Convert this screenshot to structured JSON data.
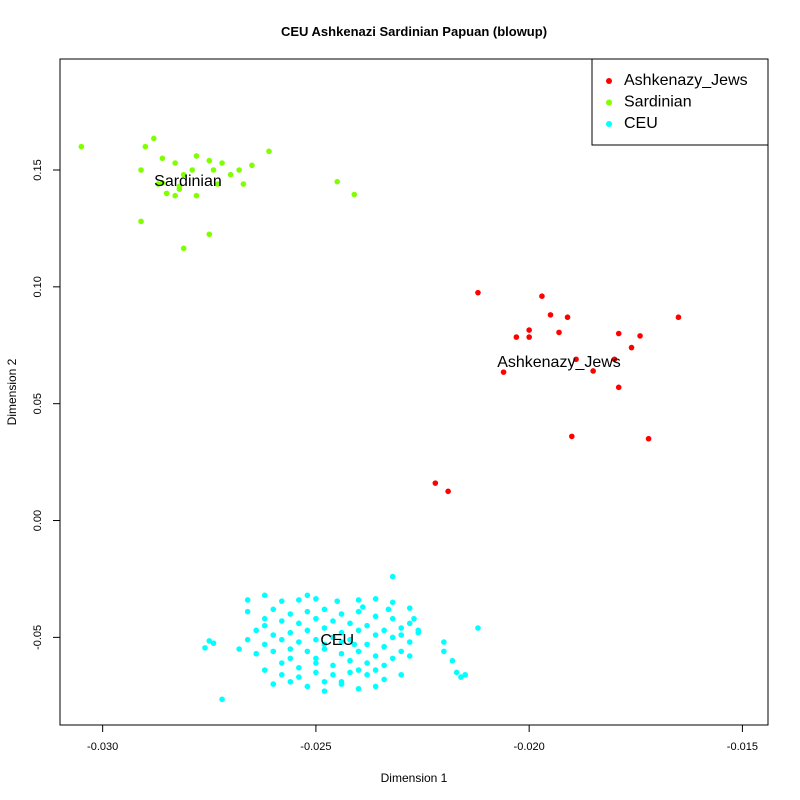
{
  "chart_data": {
    "type": "scatter",
    "title": "CEU Ashkenazi Sardinian Papuan (blowup)",
    "xlabel": "Dimension 1",
    "ylabel": "Dimension 2",
    "xlim": [
      -0.031,
      -0.0144
    ],
    "ylim": [
      -0.0875,
      0.1975
    ],
    "x_ticks": [
      {
        "value": -0.03,
        "label": "-0.030"
      },
      {
        "value": -0.025,
        "label": "-0.025"
      },
      {
        "value": -0.02,
        "label": "-0.020"
      },
      {
        "value": -0.015,
        "label": "-0.015"
      }
    ],
    "y_ticks": [
      {
        "value": -0.05,
        "label": "-0.05"
      },
      {
        "value": 0.0,
        "label": "0.00"
      },
      {
        "value": 0.05,
        "label": "0.05"
      },
      {
        "value": 0.1,
        "label": "0.10"
      },
      {
        "value": 0.15,
        "label": "0.15"
      }
    ],
    "grid": false,
    "legend_position": "top-right",
    "legend": [
      "Ashkenazy_Jews",
      "Sardinian",
      "CEU"
    ],
    "series": [
      {
        "name": "Ashkenazy_Jews",
        "color": "#ff0000",
        "label": "Ashkenazy_Jews",
        "label_pos": [
          -0.0193,
          0.0675
        ],
        "points": [
          [
            -0.0212,
            0.0975
          ],
          [
            -0.0197,
            0.096
          ],
          [
            -0.0195,
            0.088
          ],
          [
            -0.0191,
            0.087
          ],
          [
            -0.0165,
            0.087
          ],
          [
            -0.02,
            0.0815
          ],
          [
            -0.0193,
            0.0805
          ],
          [
            -0.0179,
            0.08
          ],
          [
            -0.0174,
            0.079
          ],
          [
            -0.0203,
            0.0785
          ],
          [
            -0.02,
            0.0785
          ],
          [
            -0.0176,
            0.074
          ],
          [
            -0.0189,
            0.069
          ],
          [
            -0.018,
            0.069
          ],
          [
            -0.0206,
            0.0635
          ],
          [
            -0.0185,
            0.064
          ],
          [
            -0.0179,
            0.057
          ],
          [
            -0.019,
            0.036
          ],
          [
            -0.0172,
            0.035
          ],
          [
            -0.0222,
            0.016
          ],
          [
            -0.0219,
            0.0125
          ]
        ]
      },
      {
        "name": "Sardinian",
        "color": "#80ff00",
        "label": "Sardinian",
        "label_pos": [
          -0.028,
          0.145
        ],
        "points": [
          [
            -0.0305,
            0.16
          ],
          [
            -0.0291,
            0.15
          ],
          [
            -0.029,
            0.16
          ],
          [
            -0.0288,
            0.1635
          ],
          [
            -0.0287,
            0.144
          ],
          [
            -0.0286,
            0.155
          ],
          [
            -0.0285,
            0.14
          ],
          [
            -0.0283,
            0.139
          ],
          [
            -0.0283,
            0.153
          ],
          [
            -0.0282,
            0.143
          ],
          [
            -0.0281,
            0.148
          ],
          [
            -0.0279,
            0.15
          ],
          [
            -0.0278,
            0.156
          ],
          [
            -0.0278,
            0.139
          ],
          [
            -0.0275,
            0.154
          ],
          [
            -0.0274,
            0.15
          ],
          [
            -0.0273,
            0.144
          ],
          [
            -0.0272,
            0.153
          ],
          [
            -0.027,
            0.148
          ],
          [
            -0.0268,
            0.15
          ],
          [
            -0.0267,
            0.144
          ],
          [
            -0.0265,
            0.152
          ],
          [
            -0.0261,
            0.158
          ],
          [
            -0.0291,
            0.128
          ],
          [
            -0.0281,
            0.1165
          ],
          [
            -0.0275,
            0.1225
          ],
          [
            -0.0245,
            0.145
          ],
          [
            -0.0241,
            0.1395
          ],
          [
            -0.0286,
            0.1445
          ],
          [
            -0.0282,
            0.1418
          ]
        ]
      },
      {
        "name": "CEU",
        "color": "#00ffff",
        "label": "CEU",
        "label_pos": [
          -0.0245,
          -0.0515
        ],
        "points": [
          [
            -0.0232,
            -0.024
          ],
          [
            -0.0228,
            -0.0375
          ],
          [
            -0.0212,
            -0.046
          ],
          [
            -0.0232,
            -0.035
          ],
          [
            -0.0236,
            -0.0335
          ],
          [
            -0.024,
            -0.034
          ],
          [
            -0.0245,
            -0.0345
          ],
          [
            -0.025,
            -0.0335
          ],
          [
            -0.0254,
            -0.034
          ],
          [
            -0.0258,
            -0.0345
          ],
          [
            -0.0262,
            -0.032
          ],
          [
            -0.0266,
            -0.034
          ],
          [
            -0.026,
            -0.038
          ],
          [
            -0.0256,
            -0.04
          ],
          [
            -0.0252,
            -0.039
          ],
          [
            -0.0248,
            -0.038
          ],
          [
            -0.0244,
            -0.04
          ],
          [
            -0.024,
            -0.039
          ],
          [
            -0.0236,
            -0.041
          ],
          [
            -0.0232,
            -0.042
          ],
          [
            -0.0228,
            -0.044
          ],
          [
            -0.0226,
            -0.048
          ],
          [
            -0.023,
            -0.046
          ],
          [
            -0.0234,
            -0.047
          ],
          [
            -0.0238,
            -0.045
          ],
          [
            -0.0242,
            -0.044
          ],
          [
            -0.0246,
            -0.043
          ],
          [
            -0.025,
            -0.042
          ],
          [
            -0.0254,
            -0.044
          ],
          [
            -0.0258,
            -0.043
          ],
          [
            -0.0262,
            -0.045
          ],
          [
            -0.0264,
            -0.047
          ],
          [
            -0.026,
            -0.049
          ],
          [
            -0.0256,
            -0.048
          ],
          [
            -0.0252,
            -0.047
          ],
          [
            -0.0248,
            -0.046
          ],
          [
            -0.0244,
            -0.048
          ],
          [
            -0.024,
            -0.047
          ],
          [
            -0.0236,
            -0.049
          ],
          [
            -0.0232,
            -0.05
          ],
          [
            -0.0228,
            -0.052
          ],
          [
            -0.023,
            -0.056
          ],
          [
            -0.0234,
            -0.054
          ],
          [
            -0.0238,
            -0.053
          ],
          [
            -0.0242,
            -0.051
          ],
          [
            -0.0246,
            -0.05
          ],
          [
            -0.025,
            -0.051
          ],
          [
            -0.0254,
            -0.052
          ],
          [
            -0.0258,
            -0.051
          ],
          [
            -0.0262,
            -0.053
          ],
          [
            -0.0266,
            -0.051
          ],
          [
            -0.0268,
            -0.055
          ],
          [
            -0.0264,
            -0.057
          ],
          [
            -0.026,
            -0.056
          ],
          [
            -0.0256,
            -0.055
          ],
          [
            -0.0252,
            -0.056
          ],
          [
            -0.0248,
            -0.055
          ],
          [
            -0.0244,
            -0.057
          ],
          [
            -0.024,
            -0.056
          ],
          [
            -0.0236,
            -0.058
          ],
          [
            -0.0232,
            -0.059
          ],
          [
            -0.0228,
            -0.058
          ],
          [
            -0.0234,
            -0.062
          ],
          [
            -0.0238,
            -0.061
          ],
          [
            -0.0242,
            -0.06
          ],
          [
            -0.0246,
            -0.062
          ],
          [
            -0.025,
            -0.061
          ],
          [
            -0.0254,
            -0.063
          ],
          [
            -0.0258,
            -0.061
          ],
          [
            -0.0262,
            -0.064
          ],
          [
            -0.0258,
            -0.066
          ],
          [
            -0.0254,
            -0.067
          ],
          [
            -0.025,
            -0.065
          ],
          [
            -0.0246,
            -0.066
          ],
          [
            -0.0242,
            -0.065
          ],
          [
            -0.0238,
            -0.066
          ],
          [
            -0.0234,
            -0.068
          ],
          [
            -0.023,
            -0.066
          ],
          [
            -0.026,
            -0.07
          ],
          [
            -0.0252,
            -0.071
          ],
          [
            -0.0244,
            -0.07
          ],
          [
            -0.0236,
            -0.071
          ],
          [
            -0.0248,
            -0.073
          ],
          [
            -0.024,
            -0.072
          ],
          [
            -0.0256,
            -0.069
          ],
          [
            -0.0248,
            -0.069
          ],
          [
            -0.0244,
            -0.069
          ],
          [
            -0.0276,
            -0.0545
          ],
          [
            -0.0275,
            -0.0515
          ],
          [
            -0.0274,
            -0.0525
          ],
          [
            -0.0272,
            -0.0765
          ],
          [
            -0.022,
            -0.052
          ],
          [
            -0.022,
            -0.056
          ],
          [
            -0.0218,
            -0.06
          ],
          [
            -0.0217,
            -0.065
          ],
          [
            -0.0216,
            -0.067
          ],
          [
            -0.0215,
            -0.066
          ],
          [
            -0.0226,
            -0.047
          ],
          [
            -0.023,
            -0.049
          ],
          [
            -0.0262,
            -0.042
          ],
          [
            -0.0252,
            -0.032
          ],
          [
            -0.0239,
            -0.037
          ],
          [
            -0.0233,
            -0.038
          ],
          [
            -0.0227,
            -0.042
          ],
          [
            -0.0266,
            -0.039
          ],
          [
            -0.0244,
            -0.052
          ],
          [
            -0.0248,
            -0.053
          ],
          [
            -0.0241,
            -0.053
          ],
          [
            -0.0256,
            -0.059
          ],
          [
            -0.024,
            -0.064
          ],
          [
            -0.0236,
            -0.064
          ],
          [
            -0.025,
            -0.059
          ]
        ]
      }
    ]
  }
}
